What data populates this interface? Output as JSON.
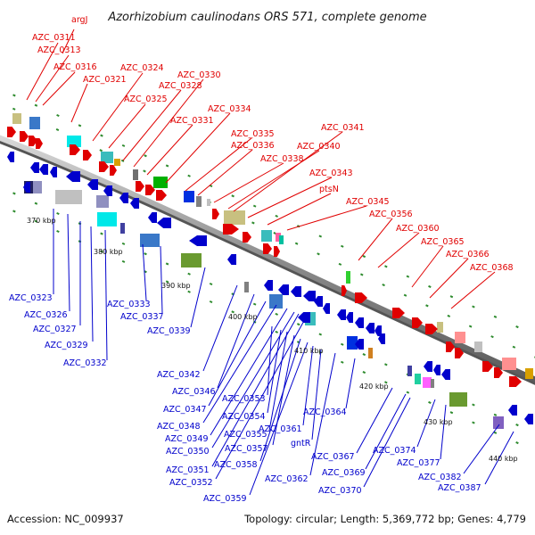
{
  "title": "Azorhizobium caulinodans ORS 571, complete genome",
  "accession": "Accession: NC_009937",
  "topology": "Topology: circular; Length: 5,369,772 bp; Genes: 4,779",
  "ticks": [
    "370 kbp",
    "380 kbp",
    "390 kbp",
    "400 kbp",
    "410 kbp",
    "420 kbp",
    "430 kbp",
    "440 kbp"
  ],
  "top_labels": [
    "argJ",
    "AZC_0311",
    "AZC_0313",
    "AZC_0316",
    "AZC_0321",
    "AZC_0324",
    "AZC_0325",
    "AZC_0328",
    "AZC_0330",
    "AZC_0331",
    "AZC_0334",
    "AZC_0335",
    "AZC_0336",
    "AZC_0338",
    "AZC_0340",
    "AZC_0341",
    "AZC_0343",
    "ptsN",
    "AZC_0345",
    "AZC_0356",
    "AZC_0360",
    "AZC_0365",
    "AZC_0366",
    "AZC_0368"
  ],
  "bottom_labels": [
    "AZC_0323",
    "AZC_0326",
    "AZC_0327",
    "AZC_0329",
    "AZC_0332",
    "AZC_0333",
    "AZC_0337",
    "AZC_0339",
    "AZC_0342",
    "AZC_0346",
    "AZC_0347",
    "AZC_0348",
    "AZC_0349",
    "AZC_0350",
    "AZC_0351",
    "AZC_0352",
    "AZC_0353",
    "AZC_0354",
    "AZC_0355",
    "AZC_0357",
    "AZC_0358",
    "AZC_0359",
    "AZC_0361",
    "gntR",
    "AZC_0362",
    "AZC_0364",
    "AZC_0367",
    "AZC_0369",
    "AZC_0370",
    "AZC_0374",
    "AZC_0377",
    "AZC_0382",
    "AZC_0387"
  ],
  "colors": {
    "forward": "#e00000",
    "reverse": "#0000cc",
    "backbone": "#8c8c8c",
    "dots": "#2e8b2e"
  }
}
